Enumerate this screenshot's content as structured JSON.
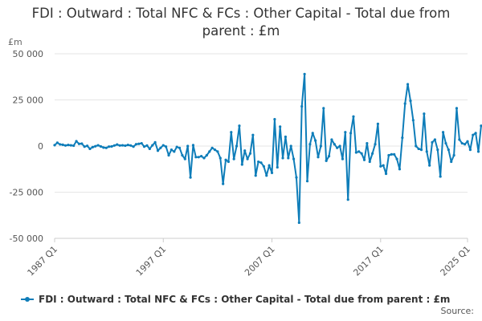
{
  "chart_data": {
    "type": "line",
    "title": "FDI : Outward : Total NFC & FCs : Other Capital - Total due from parent : £m",
    "ylabel": "£m",
    "xlabel": "",
    "ylim": [
      -50000,
      50000
    ],
    "y_ticks": [
      "50 000",
      "25 000",
      "0",
      "-25 000",
      "-50 000"
    ],
    "y_tick_values": [
      50000,
      25000,
      0,
      -25000,
      -50000
    ],
    "x_ticks": [
      "1987 Q1",
      "1997 Q1",
      "2007 Q1",
      "2017 Q1",
      "2025 Q1"
    ],
    "x_tick_values": [
      1987,
      1997,
      2007,
      2017,
      2025
    ],
    "grid": true,
    "legend_position": "bottom",
    "x_start": "1987 Q1",
    "x_step": "quarter",
    "series": [
      {
        "name": "FDI : Outward : Total NFC & FCs : Other Capital - Total due from parent : £m",
        "color": "#0e7db9",
        "values": [
          500,
          1800,
          900,
          700,
          300,
          600,
          400,
          200,
          2600,
          1200,
          1300,
          -300,
          100,
          -1500,
          -600,
          -100,
          400,
          -200,
          -800,
          -1000,
          -300,
          -200,
          300,
          800,
          300,
          400,
          200,
          600,
          300,
          -300,
          1000,
          1200,
          1500,
          -300,
          300,
          -1500,
          400,
          2000,
          -2500,
          -1000,
          400,
          -300,
          -5000,
          -2000,
          -3000,
          -500,
          -1000,
          -5000,
          -7000,
          0,
          -17000,
          500,
          -6000,
          -6000,
          -5500,
          -6500,
          -5000,
          -3000,
          -1000,
          -2000,
          -3000,
          -6500,
          -20500,
          -7500,
          -8500,
          7500,
          -7000,
          0,
          11000,
          -10000,
          -2500,
          -7000,
          -4000,
          6000,
          -16000,
          -8500,
          -9000,
          -11000,
          -16000,
          -10500,
          -14500,
          14500,
          -11500,
          10500,
          -6500,
          5000,
          -6500,
          0,
          -7000,
          -17000,
          -41500,
          21500,
          39000,
          -19000,
          1000,
          7000,
          3000,
          -6000,
          0,
          20500,
          -8000,
          -5500,
          3500,
          1000,
          -1000,
          0,
          -7000,
          7500,
          -29000,
          7000,
          16000,
          -3500,
          -3000,
          -4000,
          -7500,
          1500,
          -8500,
          -4000,
          1000,
          12000,
          -11000,
          -10500,
          -15000,
          -5000,
          -4500,
          -4500,
          -7000,
          -12500,
          4500,
          23000,
          33500,
          24500,
          14000,
          0,
          -1500,
          -2000,
          17500,
          -3000,
          -10500,
          2000,
          3500,
          -2000,
          -16500,
          7500,
          1500,
          -2000,
          -8500,
          -5000,
          20500,
          3500,
          1500,
          1000,
          2500,
          -2000,
          6000,
          7000,
          -3000,
          11000
        ]
      }
    ],
    "footer": {
      "source_label": "Source:"
    }
  }
}
